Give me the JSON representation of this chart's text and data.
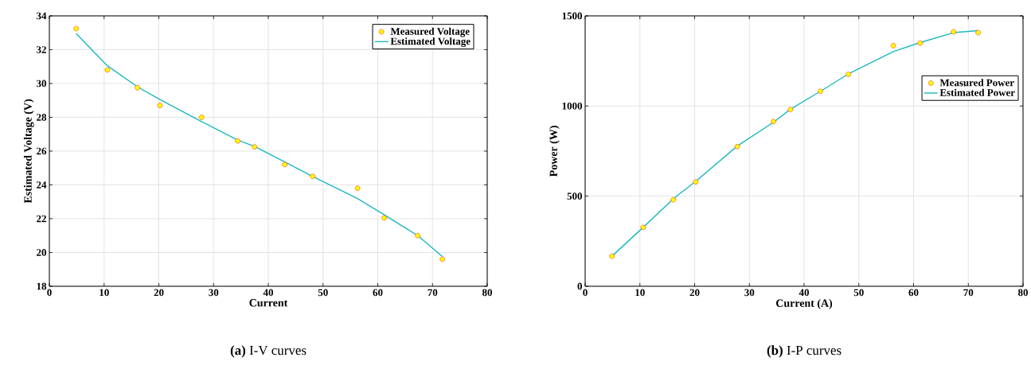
{
  "chart_data": [
    {
      "type": "line",
      "title": "**(a)** I-V curves",
      "xlabel": "Current",
      "ylabel": "Estimated Voltage (V)",
      "x": [
        4.9,
        10.6,
        16.1,
        20.2,
        27.8,
        34.4,
        37.5,
        43,
        48.1,
        56.3,
        61.2,
        67.3,
        71.8
      ],
      "series": [
        {
          "name": "Measured Voltage",
          "type": "scatter",
          "marker": "circle",
          "color": "#ffff00",
          "values": [
            33.25,
            30.8,
            29.75,
            28.7,
            28.0,
            26.6,
            26.25,
            25.2,
            24.5,
            23.8,
            22.05,
            21.0,
            19.6
          ]
        },
        {
          "name": "Estimated Voltage",
          "color": "#1ab8c0",
          "values": [
            32.95,
            31.05,
            29.8,
            29.05,
            27.75,
            26.65,
            26.28,
            25.36,
            24.5,
            23.19,
            22.23,
            21.0,
            19.76
          ]
        }
      ],
      "xlim": [
        0,
        80
      ],
      "xticks": [
        0,
        10,
        20,
        30,
        40,
        50,
        60,
        70,
        80
      ],
      "ylim": [
        18,
        34
      ],
      "yticks": [
        18,
        20,
        22,
        24,
        26,
        28,
        30,
        32,
        34
      ],
      "grid": true,
      "legend": "top right"
    },
    {
      "type": "line",
      "title": "**(b)** I-P curves",
      "xlabel": "Current (A)",
      "ylabel": "Power (W)",
      "x": [
        4.9,
        10.6,
        16.1,
        20.2,
        27.8,
        34.4,
        37.5,
        43,
        48.1,
        56.3,
        61.2,
        67.3,
        71.8
      ],
      "series": [
        {
          "name": "Measured Power",
          "type": "scatter",
          "marker": "circle",
          "color": "#ffff00",
          "values": [
            167,
            327,
            480,
            579,
            775,
            914,
            980,
            1082,
            1176,
            1335,
            1349,
            1412,
            1407
          ]
        },
        {
          "name": "Estimated Power",
          "color": "#1ab8c0",
          "values": [
            167,
            327,
            485,
            582,
            778,
            910,
            982,
            1082,
            1178,
            1302,
            1352,
            1407,
            1418
          ]
        }
      ],
      "xlim": [
        0,
        80
      ],
      "xticks": [
        0,
        10,
        20,
        30,
        40,
        50,
        60,
        70,
        80
      ],
      "ylim": [
        0,
        1500
      ],
      "yticks": [
        0,
        500,
        1000,
        1500
      ],
      "grid": true,
      "legend": "right"
    }
  ]
}
